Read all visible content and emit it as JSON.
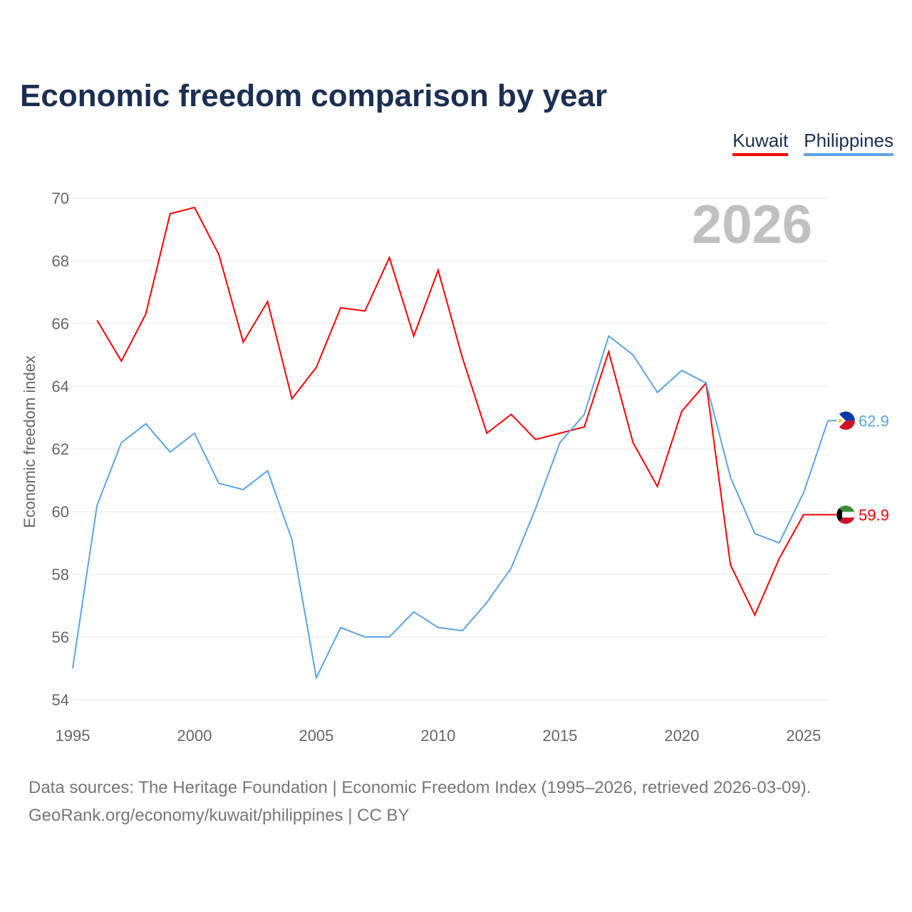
{
  "chart_data": {
    "type": "line",
    "title": "Economic freedom comparison by year",
    "ylabel": "Economic freedom index",
    "xlabel": "",
    "year_label": "2026",
    "xlim": [
      1995,
      2026
    ],
    "ylim": [
      54,
      70
    ],
    "yticks": [
      54,
      56,
      58,
      60,
      62,
      64,
      66,
      68,
      70
    ],
    "xticks": [
      1995,
      2000,
      2005,
      2010,
      2015,
      2020,
      2025
    ],
    "grid": true,
    "legend_position": "top-right",
    "series": [
      {
        "name": "Kuwait",
        "color": "#ff0000",
        "end_label": "59.9",
        "x": [
          1996,
          1997,
          1998,
          1999,
          2000,
          2001,
          2002,
          2003,
          2004,
          2005,
          2006,
          2007,
          2008,
          2009,
          2010,
          2011,
          2012,
          2013,
          2014,
          2015,
          2016,
          2017,
          2018,
          2019,
          2020,
          2021,
          2022,
          2023,
          2024,
          2025,
          2026
        ],
        "values": [
          66.1,
          64.8,
          66.3,
          69.5,
          69.7,
          68.2,
          65.4,
          66.7,
          63.6,
          64.6,
          66.5,
          66.4,
          68.1,
          65.6,
          67.7,
          64.9,
          62.5,
          63.1,
          62.3,
          62.5,
          62.7,
          65.1,
          62.2,
          60.8,
          63.2,
          64.1,
          58.3,
          56.7,
          58.5,
          59.9,
          59.9
        ]
      },
      {
        "name": "Philippines",
        "color": "#5ba4e8",
        "end_label": "62.9",
        "x": [
          1995,
          1996,
          1997,
          1998,
          1999,
          2000,
          2001,
          2002,
          2003,
          2004,
          2005,
          2006,
          2007,
          2008,
          2009,
          2010,
          2011,
          2012,
          2013,
          2014,
          2015,
          2016,
          2017,
          2018,
          2019,
          2020,
          2021,
          2022,
          2023,
          2024,
          2025,
          2026
        ],
        "values": [
          55.0,
          60.2,
          62.2,
          62.8,
          61.9,
          62.5,
          60.9,
          60.7,
          61.3,
          59.1,
          54.7,
          56.3,
          56.0,
          56.0,
          56.8,
          56.3,
          56.2,
          57.1,
          58.2,
          60.1,
          62.2,
          63.1,
          65.6,
          65.0,
          63.8,
          64.5,
          64.1,
          61.1,
          59.3,
          59.0,
          60.6,
          62.9
        ]
      }
    ]
  },
  "footer": {
    "line1": "Data sources: The Heritage Foundation | Economic Freedom Index (1995–2026, retrieved 2026-03-09).",
    "line2": "GeoRank.org/economy/kuwait/philippines | CC BY"
  }
}
